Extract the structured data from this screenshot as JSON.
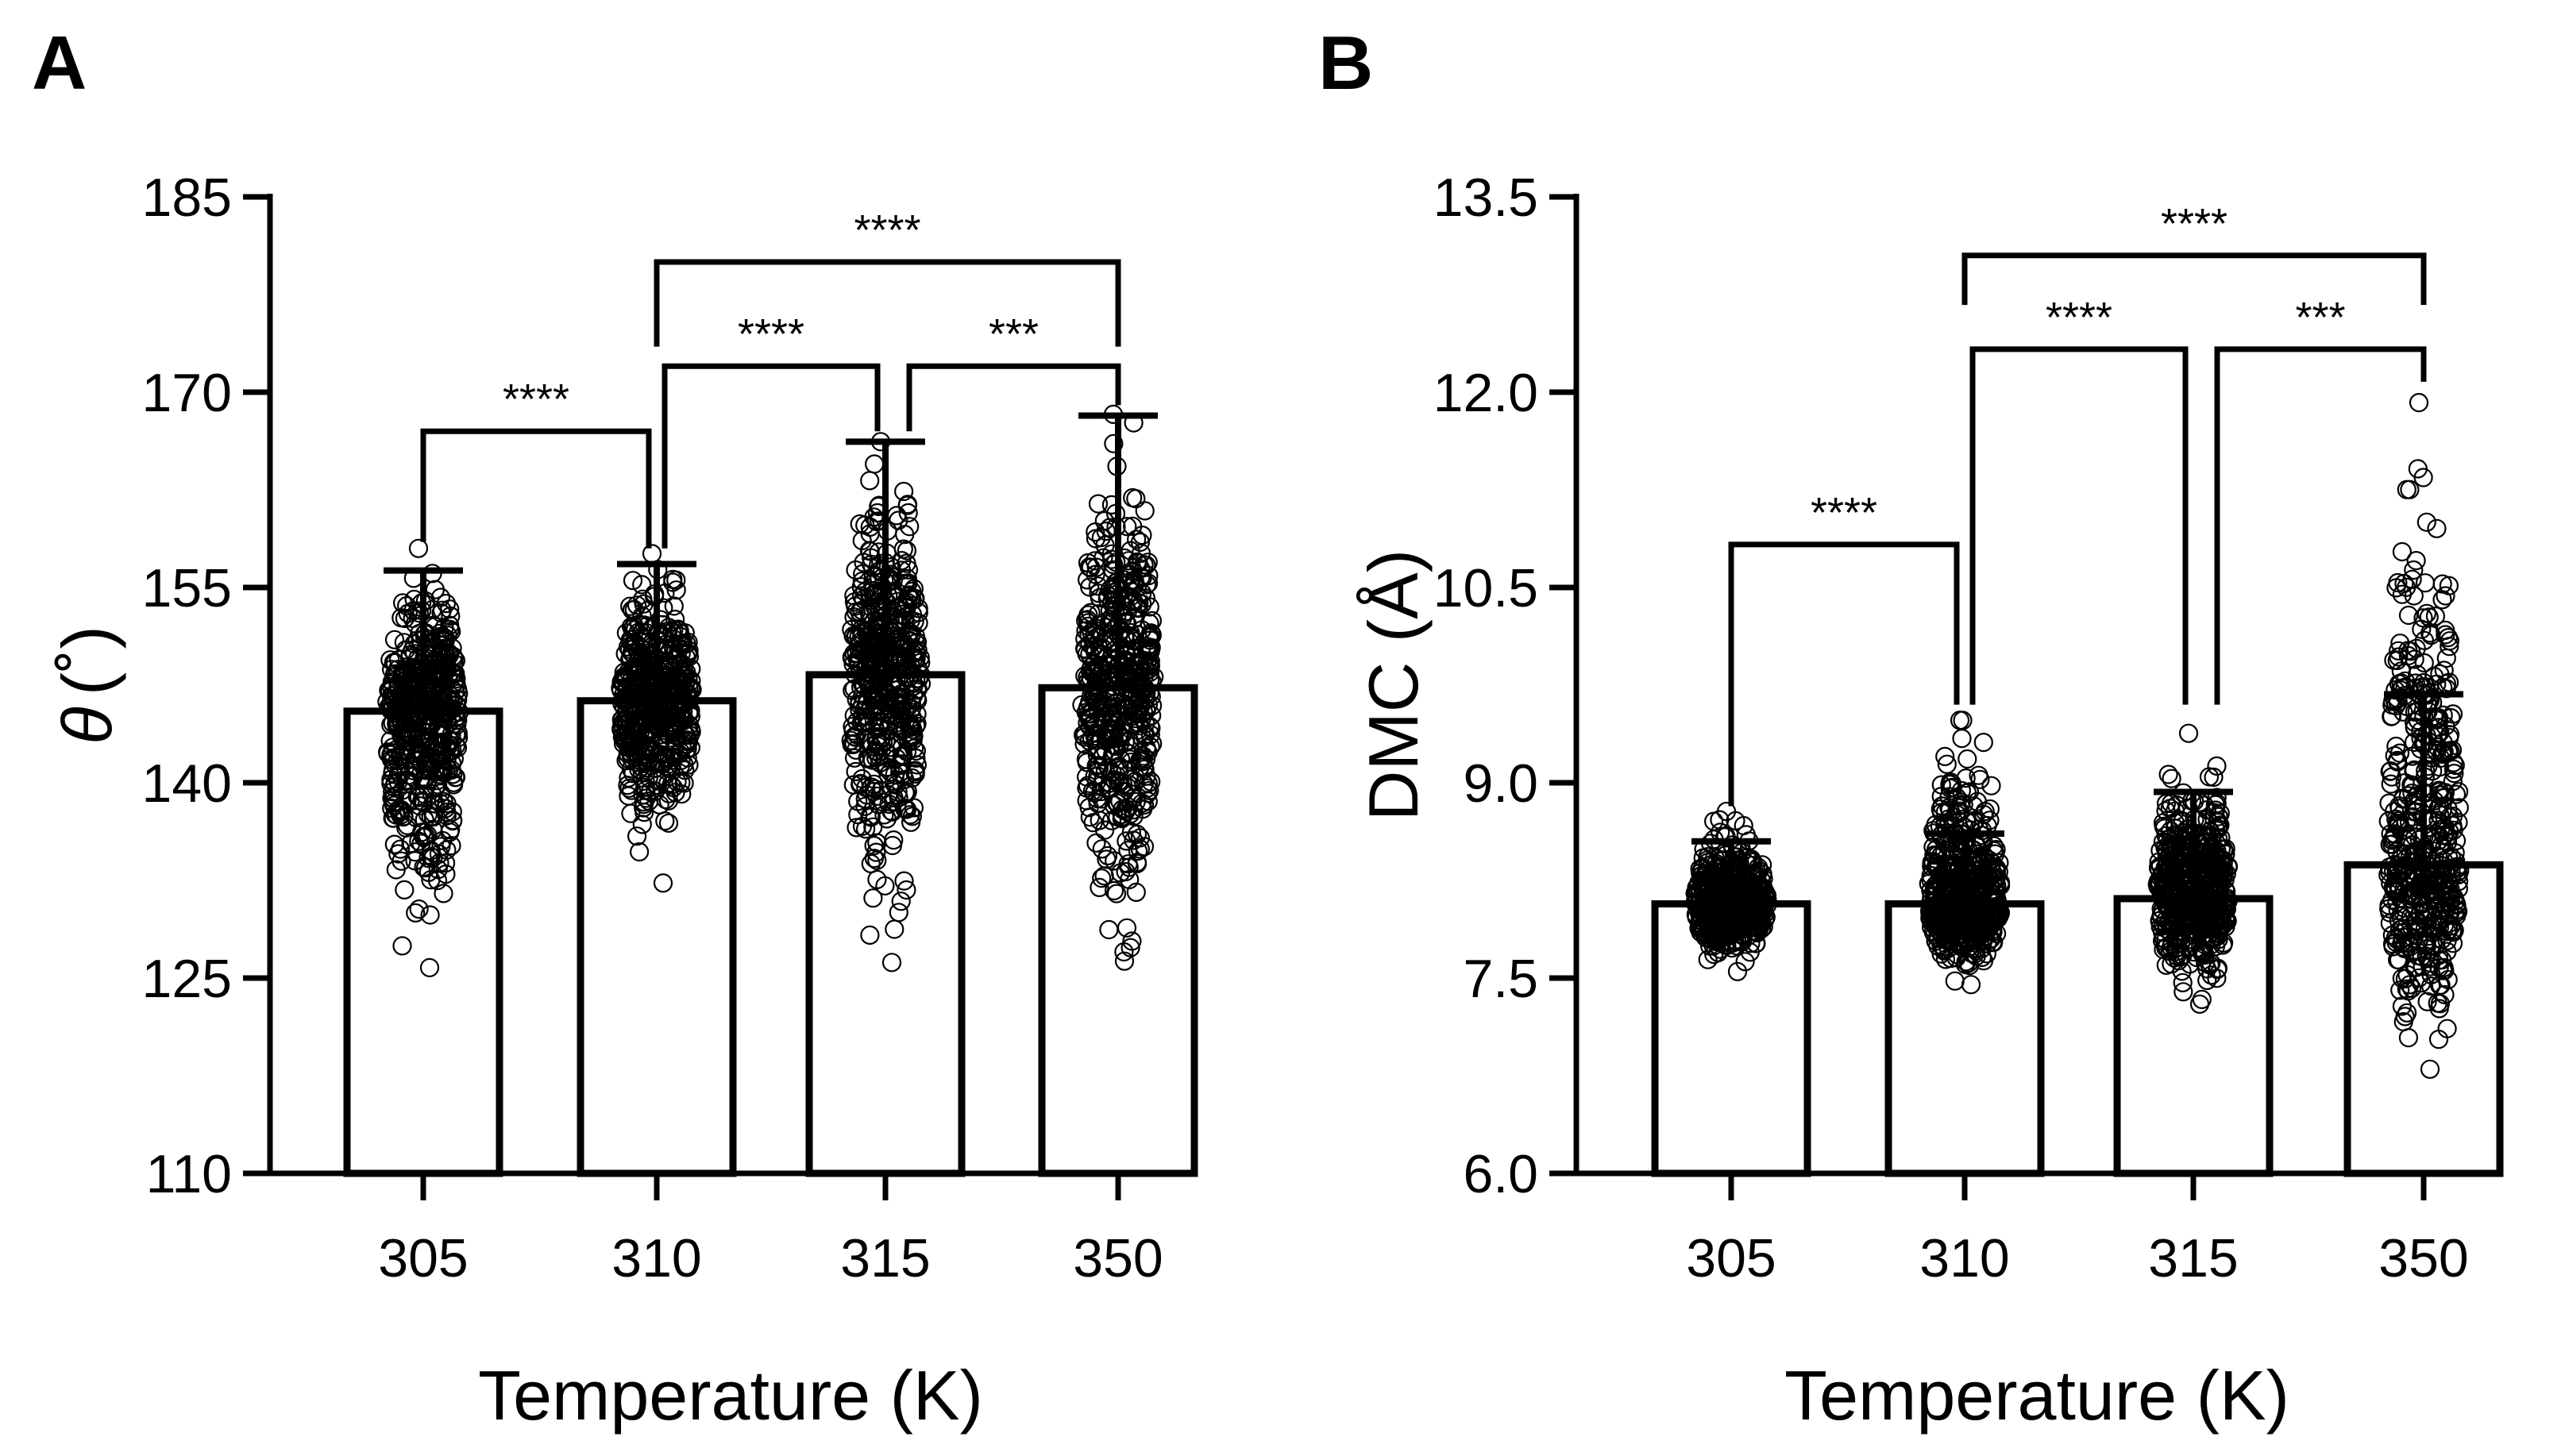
{
  "chart_data": [
    {
      "panel": "A",
      "type": "bar",
      "categories": [
        "305",
        "310",
        "315",
        "350"
      ],
      "values": [
        145.5,
        146.3,
        148.3,
        147.3
      ],
      "error_upper": [
        156.3,
        156.8,
        166.2,
        168.2
      ],
      "point_spread": [
        {
          "min": 125.8,
          "max": 158.0
        },
        {
          "min": 132.3,
          "max": 157.6
        },
        {
          "min": 126.2,
          "max": 166.2
        },
        {
          "min": 126.3,
          "max": 168.3
        }
      ],
      "ylim": [
        110,
        185
      ],
      "yticks": [
        "110",
        "125",
        "140",
        "155",
        "170",
        "185"
      ],
      "ylabel_symbol": "θ",
      "ylabel_unit": "(˚)",
      "xlabel": "Temperature (K)",
      "significance": [
        {
          "from": 0,
          "to": 1,
          "label": "****",
          "top": 167.0,
          "left_end": 158.5,
          "right_end": 158.0
        },
        {
          "from": 1,
          "to": 2,
          "label": "****",
          "top": 172.0,
          "left_end": 158.0,
          "right_end": 167.0
        },
        {
          "from": 2,
          "to": 3,
          "label": "***",
          "top": 172.0,
          "left_end": 167.0,
          "right_end": 169.0
        },
        {
          "from": 1,
          "to": 3,
          "label": "****",
          "top": 180.0,
          "left_end": 173.5,
          "right_end": 173.5
        }
      ]
    },
    {
      "panel": "B",
      "type": "bar",
      "categories": [
        "305",
        "310",
        "315",
        "350"
      ],
      "values": [
        8.07,
        8.07,
        8.11,
        8.37
      ],
      "error_upper": [
        8.55,
        8.61,
        8.93,
        9.68
      ],
      "point_spread": [
        {
          "min": 7.55,
          "max": 8.78
        },
        {
          "min": 7.45,
          "max": 9.48
        },
        {
          "min": 7.3,
          "max": 9.38
        },
        {
          "min": 6.8,
          "max": 11.92
        }
      ],
      "ylim": [
        6.0,
        13.5
      ],
      "yticks": [
        "6.0",
        "7.5",
        "9.0",
        "10.5",
        "12.0",
        "13.5"
      ],
      "ylabel": "DMC (Å)",
      "xlabel": "Temperature (K)",
      "significance": [
        {
          "from": 0,
          "to": 1,
          "label": "****",
          "top": 10.83,
          "left_end": 8.82,
          "right_end": 9.6
        },
        {
          "from": 1,
          "to": 2,
          "label": "****",
          "top": 12.33,
          "left_end": 9.6,
          "right_end": 9.6
        },
        {
          "from": 2,
          "to": 3,
          "label": "***",
          "top": 12.33,
          "left_end": 9.6,
          "right_end": 12.08
        },
        {
          "from": 1,
          "to": 3,
          "label": "****",
          "top": 13.05,
          "left_end": 12.67,
          "right_end": 12.67
        }
      ]
    }
  ],
  "colors": {
    "ink": "#000000",
    "bar_fill": "#ffffff"
  }
}
